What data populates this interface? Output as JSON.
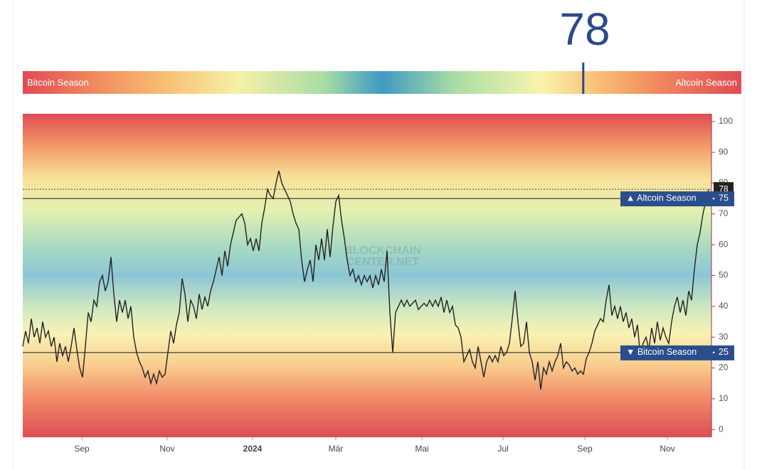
{
  "gauge": {
    "value": 78,
    "left_label": "Bitcoin Season",
    "right_label": "Altcoin Season"
  },
  "chart_data": {
    "type": "line",
    "watermark": [
      "BLOCKCHAIN",
      "CENTER.NET"
    ],
    "color": "#222222",
    "x": [
      0,
      2,
      4,
      6,
      8,
      10,
      12,
      14,
      16,
      18,
      20,
      22,
      24,
      26,
      28,
      30,
      32,
      34,
      36,
      38,
      40,
      42,
      44,
      46,
      48,
      50,
      52,
      54,
      56,
      58,
      60,
      62,
      64,
      66,
      68,
      70,
      72,
      74,
      76,
      78,
      80,
      82,
      84,
      86,
      88,
      90,
      92,
      94,
      96,
      98,
      100,
      102,
      104,
      106,
      108,
      110,
      112,
      114,
      116,
      118,
      120,
      122,
      124,
      126,
      128,
      130,
      132,
      134,
      136,
      138,
      140,
      142,
      144,
      146,
      148,
      150,
      152,
      154,
      156,
      158,
      160,
      162,
      164,
      166,
      168,
      170,
      172,
      174,
      176,
      178,
      180,
      182,
      184,
      186,
      188,
      190,
      192,
      194,
      196,
      198,
      200,
      202,
      204,
      206,
      208,
      210,
      212,
      214,
      216,
      218,
      220,
      222,
      224,
      226,
      228,
      230,
      232,
      234,
      236,
      238,
      240,
      242,
      244,
      246,
      248,
      250,
      252,
      254,
      256,
      258,
      260,
      262,
      264,
      266,
      268,
      270,
      272,
      274,
      276,
      278,
      280,
      282,
      284,
      286,
      288,
      290,
      292,
      294,
      296,
      298,
      300,
      302,
      304,
      306,
      308,
      310,
      312,
      314,
      316,
      318,
      320,
      322,
      324,
      326,
      328,
      330,
      332,
      334,
      336,
      338,
      340,
      342,
      344,
      346,
      348,
      350,
      352,
      354,
      356,
      358,
      360,
      362,
      364,
      366,
      368,
      370,
      372,
      374,
      376,
      378,
      380,
      382,
      384,
      386,
      388,
      390,
      392,
      394,
      396,
      398,
      400,
      402,
      404,
      406,
      408,
      410,
      412,
      414,
      416,
      418,
      420,
      422,
      424,
      426,
      428,
      430,
      432,
      434,
      436,
      438,
      440,
      442,
      444,
      446,
      448,
      450,
      452,
      454,
      456,
      458,
      460,
      462,
      464,
      466,
      468,
      470,
      472,
      474,
      476,
      478,
      480,
      482
    ],
    "values": [
      27,
      32,
      28,
      36,
      30,
      33,
      28,
      35,
      30,
      32,
      27,
      30,
      22,
      28,
      24,
      27,
      22,
      27,
      33,
      26,
      20,
      17,
      27,
      38,
      35,
      42,
      40,
      48,
      50,
      45,
      48,
      56,
      44,
      35,
      42,
      38,
      42,
      36,
      40,
      30,
      25,
      22,
      20,
      17,
      19,
      15,
      18,
      15,
      19,
      17,
      18,
      25,
      32,
      28,
      34,
      38,
      49,
      44,
      35,
      42,
      40,
      36,
      44,
      39,
      43,
      40,
      45,
      48,
      52,
      56,
      50,
      58,
      53,
      60,
      64,
      68,
      69,
      70,
      67,
      60,
      62,
      58,
      62,
      58,
      67,
      72,
      78,
      76,
      75,
      80,
      84,
      80,
      78,
      76,
      74,
      70,
      67,
      65,
      55,
      48,
      52,
      55,
      48,
      60,
      55,
      62,
      55,
      65,
      56,
      66,
      74,
      76,
      68,
      62,
      55,
      50,
      52,
      48,
      50,
      47,
      50,
      48,
      50,
      46,
      50,
      47,
      52,
      48,
      58,
      38,
      25,
      38,
      40,
      42,
      40,
      42,
      40,
      41,
      42,
      39,
      40,
      41,
      40,
      42,
      40,
      42,
      40,
      43,
      38,
      42,
      38,
      40,
      34,
      33,
      30,
      22,
      24,
      26,
      22,
      20,
      27,
      22,
      17,
      22,
      24,
      22,
      24,
      22,
      27,
      24,
      25,
      28,
      36,
      45,
      35,
      27,
      28,
      35,
      25,
      22,
      16,
      22,
      13,
      20,
      18,
      22,
      19,
      22,
      24,
      28,
      20,
      22,
      21,
      19,
      20,
      18,
      19,
      18,
      23,
      25,
      28,
      32,
      34,
      36,
      35,
      42,
      47,
      37,
      40,
      36,
      40,
      35,
      38,
      33,
      36,
      30,
      34,
      24,
      28,
      30,
      26,
      33,
      28,
      35,
      29,
      33,
      30,
      28,
      35,
      40,
      43,
      38,
      42,
      37,
      45,
      42,
      52,
      60,
      64,
      70,
      74,
      78
    ],
    "xlim": [
      0,
      484
    ],
    "xticks": [
      {
        "value": 41.5,
        "label": "Sep"
      },
      {
        "value": 101.5,
        "label": "Nov"
      },
      {
        "value": 161.5,
        "label": "2024"
      },
      {
        "value": 220,
        "label": "Mär"
      },
      {
        "value": 280.5,
        "label": "Mai"
      },
      {
        "value": 337.5,
        "label": "Jul"
      },
      {
        "value": 395,
        "label": "Sep"
      },
      {
        "value": 453,
        "label": "Nov"
      }
    ],
    "ylim": [
      -2.5,
      102.5
    ],
    "yticks": [
      0,
      10,
      20,
      30,
      40,
      50,
      60,
      70,
      80,
      90,
      100
    ],
    "thresholds": [
      {
        "value": 75,
        "label": "▲ Altcoin Season"
      },
      {
        "value": 25,
        "label": "▼ Bitcoin Season"
      }
    ]
  }
}
